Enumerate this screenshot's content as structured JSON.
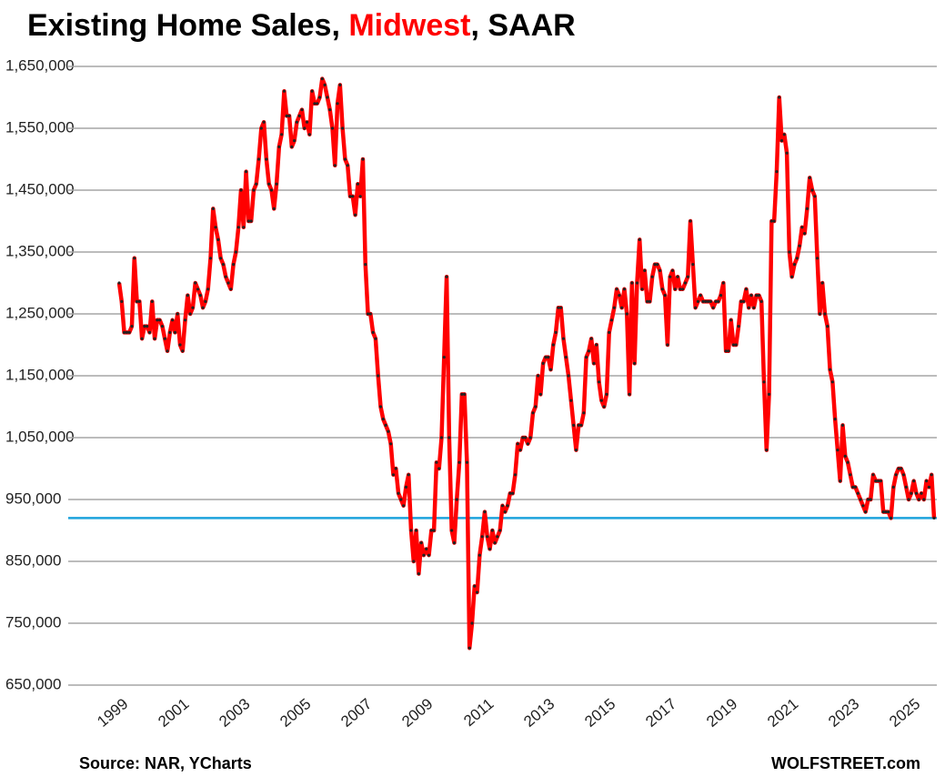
{
  "chart_data": {
    "type": "line",
    "title": [
      "Existing Home Sales, ",
      "Midwest",
      ", SAAR"
    ],
    "title_highlight_color": "#ff0000",
    "source": "Source: NAR, YCharts",
    "credit": "WOLFSTREET.com",
    "categories": [
      "1999",
      null,
      null,
      null,
      null,
      null,
      null,
      null,
      null,
      null,
      null,
      null,
      null,
      null,
      null,
      null,
      null,
      null,
      null,
      null,
      null,
      null,
      null,
      null,
      "2001",
      null,
      null,
      null,
      null,
      null,
      null,
      null,
      null,
      null,
      null,
      null,
      null,
      null,
      null,
      null,
      null,
      null,
      null,
      null,
      null,
      null,
      null,
      null,
      "2003",
      null,
      null,
      null,
      null,
      null,
      null,
      null,
      null,
      null,
      null,
      null,
      null,
      null,
      null,
      null,
      null,
      null,
      null,
      null,
      null,
      null,
      null,
      null,
      "2005",
      null,
      null,
      null,
      null,
      null,
      null,
      null,
      null,
      null,
      null,
      null,
      null,
      null,
      null,
      null,
      null,
      null,
      null,
      null,
      null,
      null,
      null,
      null,
      "2007",
      null,
      null,
      null,
      null,
      null,
      null,
      null,
      null,
      null,
      null,
      null,
      null,
      null,
      null,
      null,
      null,
      null,
      null,
      null,
      null,
      null,
      null,
      null,
      "2009",
      null,
      null,
      null,
      null,
      null,
      null,
      null,
      null,
      null,
      null,
      null,
      null,
      null,
      null,
      null,
      null,
      null,
      null,
      null,
      null,
      null,
      null,
      null,
      "2011",
      null,
      null,
      null,
      null,
      null,
      null,
      null,
      null,
      null,
      null,
      null,
      null,
      null,
      null,
      null,
      null,
      null,
      null,
      null,
      null,
      null,
      null,
      null,
      "2013",
      null,
      null,
      null,
      null,
      null,
      null,
      null,
      null,
      null,
      null,
      null,
      null,
      null,
      null,
      null,
      null,
      null,
      null,
      null,
      null,
      null,
      null,
      null,
      "2015",
      null,
      null,
      null,
      null,
      null,
      null,
      null,
      null,
      null,
      null,
      null,
      null,
      null,
      null,
      null,
      null,
      null,
      null,
      null,
      null,
      null,
      null,
      null,
      "2017",
      null,
      null,
      null,
      null,
      null,
      null,
      null,
      null,
      null,
      null,
      null,
      null,
      null,
      null,
      null,
      null,
      null,
      null,
      null,
      null,
      null,
      null,
      null,
      "2019",
      null,
      null,
      null,
      null,
      null,
      null,
      null,
      null,
      null,
      null,
      null,
      null,
      null,
      null,
      null,
      null,
      null,
      null,
      null,
      null,
      null,
      null,
      null,
      "2021",
      null,
      null,
      null,
      null,
      null,
      null,
      null,
      null,
      null,
      null,
      null,
      null,
      null,
      null,
      null,
      null,
      null,
      null,
      null,
      null,
      null,
      null,
      null,
      "2023",
      null,
      null,
      null,
      null,
      null,
      null,
      null,
      null,
      null,
      null,
      null,
      null,
      null,
      null,
      null,
      null,
      null,
      null,
      null,
      null,
      null,
      null,
      null,
      "2025",
      null,
      null,
      null,
      null,
      null,
      null,
      null,
      null,
      null
    ],
    "series": [
      {
        "color": "#ff0000",
        "marker_color": "#222222",
        "values": [
          1300000,
          1270000,
          1220000,
          1220000,
          1220000,
          1230000,
          1340000,
          1270000,
          1270000,
          1210000,
          1230000,
          1230000,
          1220000,
          1270000,
          1210000,
          1240000,
          1240000,
          1230000,
          1210000,
          1190000,
          1220000,
          1240000,
          1220000,
          1250000,
          1200000,
          1190000,
          1240000,
          1280000,
          1250000,
          1260000,
          1300000,
          1290000,
          1280000,
          1260000,
          1270000,
          1290000,
          1340000,
          1420000,
          1390000,
          1370000,
          1340000,
          1330000,
          1310000,
          1300000,
          1290000,
          1330000,
          1350000,
          1390000,
          1450000,
          1390000,
          1480000,
          1400000,
          1400000,
          1450000,
          1460000,
          1500000,
          1550000,
          1560000,
          1500000,
          1460000,
          1450000,
          1420000,
          1460000,
          1520000,
          1540000,
          1610000,
          1570000,
          1570000,
          1520000,
          1530000,
          1560000,
          1570000,
          1580000,
          1550000,
          1560000,
          1540000,
          1610000,
          1590000,
          1590000,
          1600000,
          1630000,
          1620000,
          1600000,
          1580000,
          1550000,
          1490000,
          1590000,
          1620000,
          1550000,
          1500000,
          1490000,
          1440000,
          1440000,
          1410000,
          1460000,
          1440000,
          1500000,
          1330000,
          1250000,
          1250000,
          1220000,
          1210000,
          1150000,
          1100000,
          1080000,
          1070000,
          1060000,
          1040000,
          990000,
          1000000,
          960000,
          950000,
          940000,
          970000,
          990000,
          900000,
          850000,
          900000,
          830000,
          880000,
          860000,
          870000,
          860000,
          900000,
          900000,
          1010000,
          1000000,
          1050000,
          1180000,
          1310000,
          1050000,
          900000,
          880000,
          950000,
          1010000,
          1120000,
          1120000,
          1010000,
          710000,
          750000,
          810000,
          800000,
          860000,
          890000,
          930000,
          890000,
          870000,
          900000,
          880000,
          890000,
          900000,
          940000,
          930000,
          940000,
          960000,
          960000,
          990000,
          1040000,
          1030000,
          1050000,
          1050000,
          1040000,
          1050000,
          1090000,
          1100000,
          1150000,
          1120000,
          1170000,
          1180000,
          1180000,
          1160000,
          1200000,
          1220000,
          1260000,
          1260000,
          1210000,
          1180000,
          1150000,
          1110000,
          1070000,
          1030000,
          1070000,
          1070000,
          1090000,
          1180000,
          1190000,
          1210000,
          1170000,
          1200000,
          1140000,
          1110000,
          1100000,
          1120000,
          1220000,
          1240000,
          1260000,
          1290000,
          1280000,
          1260000,
          1290000,
          1250000,
          1120000,
          1300000,
          1170000,
          1300000,
          1370000,
          1290000,
          1320000,
          1270000,
          1270000,
          1310000,
          1330000,
          1330000,
          1320000,
          1290000,
          1280000,
          1200000,
          1310000,
          1320000,
          1290000,
          1310000,
          1290000,
          1290000,
          1300000,
          1310000,
          1400000,
          1330000,
          1260000,
          1270000,
          1280000,
          1270000,
          1270000,
          1270000,
          1270000,
          1260000,
          1270000,
          1270000,
          1280000,
          1300000,
          1190000,
          1190000,
          1240000,
          1200000,
          1200000,
          1230000,
          1270000,
          1270000,
          1290000,
          1260000,
          1280000,
          1260000,
          1280000,
          1280000,
          1270000,
          1140000,
          1030000,
          1120000,
          1400000,
          1400000,
          1480000,
          1600000,
          1530000,
          1540000,
          1510000,
          1350000,
          1310000,
          1330000,
          1340000,
          1360000,
          1390000,
          1380000,
          1420000,
          1470000,
          1450000,
          1440000,
          1340000,
          1250000,
          1300000,
          1250000,
          1230000,
          1160000,
          1140000,
          1080000,
          1030000,
          980000,
          1070000,
          1020000,
          1010000,
          990000,
          970000,
          970000,
          960000,
          950000,
          940000,
          930000,
          950000,
          950000,
          990000,
          980000,
          980000,
          980000,
          930000,
          930000,
          930000,
          920000,
          970000,
          990000,
          1000000,
          1000000,
          990000,
          970000,
          950000,
          960000,
          980000,
          960000,
          950000,
          960000,
          950000,
          980000,
          970000,
          990000,
          920000
        ]
      }
    ],
    "reference_line": {
      "value": 920000,
      "color": "#1ca3dc"
    },
    "ylim": [
      650000,
      1650000
    ],
    "yticks": [
      {
        "value": 650000,
        "label": "650,000"
      },
      {
        "value": 750000,
        "label": "750,000"
      },
      {
        "value": 850000,
        "label": "850,000"
      },
      {
        "value": 950000,
        "label": "950,000"
      },
      {
        "value": 1050000,
        "label": "1,050,000"
      },
      {
        "value": 1150000,
        "label": "1,150,000"
      },
      {
        "value": 1250000,
        "label": "1,250,000"
      },
      {
        "value": 1350000,
        "label": "1,350,000"
      },
      {
        "value": 1450000,
        "label": "1,450,000"
      },
      {
        "value": 1550000,
        "label": "1,550,000"
      },
      {
        "value": 1650000,
        "label": "1,650,000"
      }
    ],
    "grid": true
  }
}
